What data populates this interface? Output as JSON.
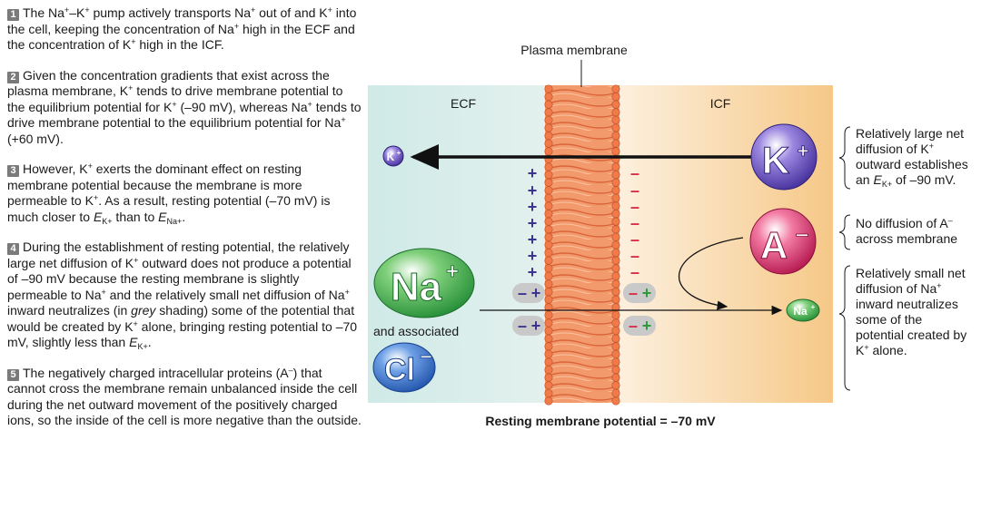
{
  "steps": [
    {
      "num": "1",
      "segments": [
        {
          "t": "The Na"
        },
        {
          "t": "+",
          "s": "sup"
        },
        {
          "t": "–K"
        },
        {
          "t": "+",
          "s": "sup"
        },
        {
          "t": " pump actively transports Na"
        },
        {
          "t": "+",
          "s": "sup"
        },
        {
          "t": " out of and K"
        },
        {
          "t": "+",
          "s": "sup"
        },
        {
          "t": " into the cell, keeping the concentration of Na"
        },
        {
          "t": "+",
          "s": "sup"
        },
        {
          "t": " high in the ECF and the concentration of K"
        },
        {
          "t": "+",
          "s": "sup"
        },
        {
          "t": " high in the ICF."
        }
      ]
    },
    {
      "num": "2",
      "segments": [
        {
          "t": "Given the concentration gradients that exist across the plasma membrane, K"
        },
        {
          "t": "+",
          "s": "sup"
        },
        {
          "t": " tends to drive membrane potential to the equilibrium potential for K"
        },
        {
          "t": "+",
          "s": "sup"
        },
        {
          "t": " (–90 mV), whereas Na"
        },
        {
          "t": "+",
          "s": "sup"
        },
        {
          "t": " tends to drive membrane potential to the equilibrium potential for Na"
        },
        {
          "t": "+",
          "s": "sup"
        },
        {
          "t": " (+60 mV)."
        }
      ]
    },
    {
      "num": "3",
      "segments": [
        {
          "t": "However, K"
        },
        {
          "t": "+",
          "s": "sup"
        },
        {
          "t": " exerts the dominant effect on resting membrane potential because the membrane is more permeable to K"
        },
        {
          "t": "+",
          "s": "sup"
        },
        {
          "t": ". As a result, resting potential (–70 mV) is much closer to "
        },
        {
          "t": "E",
          "s": "it"
        },
        {
          "t": "K+",
          "s": "sub"
        },
        {
          "t": " than to "
        },
        {
          "t": "E",
          "s": "it"
        },
        {
          "t": "Na+",
          "s": "sub"
        },
        {
          "t": "."
        }
      ]
    },
    {
      "num": "4",
      "segments": [
        {
          "t": "During the establishment of resting potential, the relatively large net diffusion of K"
        },
        {
          "t": "+",
          "s": "sup"
        },
        {
          "t": " outward does not produce a potential of –90 mV because the resting membrane is slightly permeable to Na"
        },
        {
          "t": "+",
          "s": "sup"
        },
        {
          "t": " and the relatively small net diffusion of Na"
        },
        {
          "t": "+",
          "s": "sup"
        },
        {
          "t": " inward neutralizes (in "
        },
        {
          "t": "grey",
          "s": "it"
        },
        {
          "t": " shading) some of the potential that would be created by K"
        },
        {
          "t": "+",
          "s": "sup"
        },
        {
          "t": " alone, bringing resting potential to –70 mV, slightly less than "
        },
        {
          "t": "E",
          "s": "it"
        },
        {
          "t": "K+",
          "s": "sub"
        },
        {
          "t": "."
        }
      ]
    },
    {
      "num": "5",
      "segments": [
        {
          "t": "The negatively charged intracellular proteins (A"
        },
        {
          "t": "–",
          "s": "sup"
        },
        {
          "t": ") that cannot cross the membrane remain unbalanced inside the cell during the net outward movement of the positively charged ions, so the inside of the cell is more negative than the outside."
        }
      ]
    }
  ],
  "diagram": {
    "membrane_label": "Plasma membrane",
    "ecf_label": "ECF",
    "icf_label": "ICF",
    "caption": "Resting membrane potential = –70 mV",
    "ions": {
      "k_large": "K",
      "k_small": "K",
      "k_charge": "+",
      "a_large": "A",
      "a_charge": "–",
      "na_large": "Na",
      "na_small": "Na",
      "na_charge": "+",
      "cl": "Cl",
      "cl_charge": "–",
      "associated": "and associated"
    },
    "plus_sign": "+",
    "minus_sign": "–"
  },
  "notes": {
    "k_line1": "Relatively large net",
    "k_line2_pre": "diffusion of K",
    "k_line2_sup": "+",
    "k_line3": "outward establishes",
    "k_line4_pre": "an ",
    "k_line4_e": "E",
    "k_line4_sub": "K+",
    "k_line4_post": " of –90 mV.",
    "a_line1_pre": "No diffusion of A",
    "a_line1_sup": "–",
    "a_line2": "across membrane",
    "na_line1": "Relatively small net",
    "na_line2_pre": "diffusion of Na",
    "na_line2_sup": "+",
    "na_line3": "inward neutralizes",
    "na_line4": "some of the",
    "na_line5": "potential created by",
    "na_line6_pre": "K",
    "na_line6_sup": "+",
    "na_line6_post": " alone."
  },
  "colors": {
    "ecf_bg": "#d3ece9",
    "icf_bg": "#f7c98a",
    "membrane": "#f08a5d",
    "k_ion": "#6e52c4",
    "a_ion": "#e0336d",
    "na_ion": "#43b14b",
    "cl_ion": "#2e6bc4",
    "plus": "#3b3390",
    "minus": "#d62e46",
    "neutral_green": "#2f9a3a"
  }
}
